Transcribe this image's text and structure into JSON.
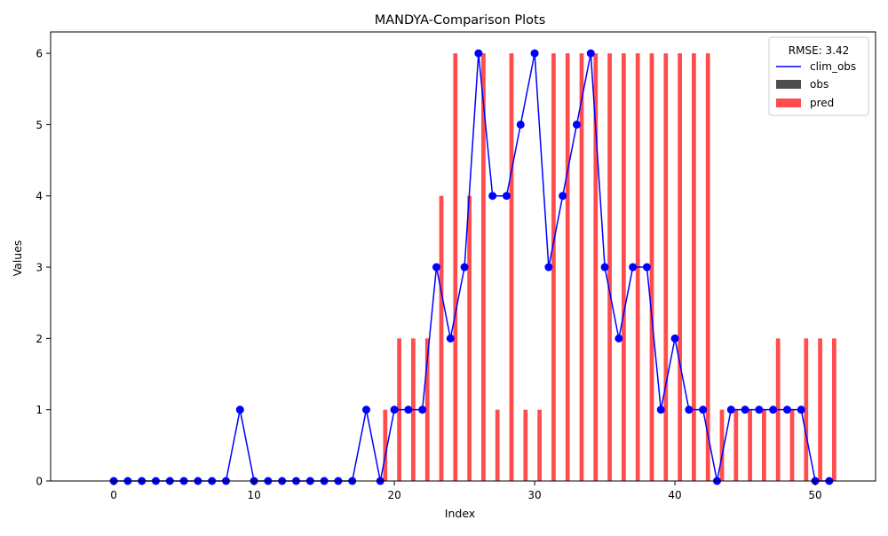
{
  "chart_data": {
    "type": "bar+line",
    "title": "MANDYA-Comparison Plots",
    "xlabel": "Index",
    "ylabel": "Values",
    "xlim": [
      -4.5,
      54.3
    ],
    "ylim": [
      0,
      6.3
    ],
    "xticks": [
      0,
      10,
      20,
      30,
      40,
      50
    ],
    "yticks": [
      0,
      1,
      2,
      3,
      4,
      5,
      6
    ],
    "legend": {
      "title": "RMSE: 3.42",
      "position": "top-right",
      "entries": [
        {
          "label": "clim_obs",
          "kind": "line",
          "color": "#0000ff"
        },
        {
          "label": "obs",
          "kind": "patch",
          "color": "#4d4d4d"
        },
        {
          "label": "pred",
          "kind": "patch",
          "color": "#ff4d4d"
        }
      ]
    },
    "series": [
      {
        "name": "clim_obs",
        "kind": "line",
        "color": "#0000ff",
        "x": [
          0,
          1,
          2,
          3,
          4,
          5,
          6,
          7,
          8,
          9,
          10,
          11,
          12,
          13,
          14,
          15,
          16,
          17,
          18,
          19,
          20,
          21,
          22,
          23,
          24,
          25,
          26,
          27,
          28,
          29,
          30,
          31,
          32,
          33,
          34,
          35,
          36,
          37,
          38,
          39,
          40,
          41,
          42,
          43,
          44,
          45,
          46,
          47,
          48,
          49,
          50,
          51
        ],
        "values": [
          0,
          0,
          0,
          0,
          0,
          0,
          0,
          0,
          0,
          1,
          0,
          0,
          0,
          0,
          0,
          0,
          0,
          0,
          1,
          0,
          1,
          1,
          1,
          3,
          2,
          3,
          6,
          4,
          4,
          5,
          6,
          3,
          4,
          5,
          6,
          3,
          2,
          3,
          3,
          1,
          2,
          1,
          1,
          0,
          1,
          1,
          1,
          1,
          1,
          1,
          0,
          0
        ]
      },
      {
        "name": "obs",
        "kind": "bar",
        "color": "#4d4d4d",
        "x": [],
        "values": []
      },
      {
        "name": "pred",
        "kind": "bar",
        "color": "#ff4d4d",
        "x": [
          19,
          20,
          21,
          22,
          23,
          24,
          25,
          26,
          27,
          28,
          29,
          30,
          31,
          32,
          33,
          34,
          35,
          36,
          37,
          38,
          39,
          40,
          41,
          42,
          43,
          44,
          45,
          46,
          47,
          48,
          49,
          50,
          51
        ],
        "values": [
          1,
          2,
          2,
          2,
          4,
          6,
          4,
          6,
          1,
          6,
          1,
          1,
          6,
          6,
          6,
          6,
          6,
          6,
          6,
          6,
          6,
          6,
          6,
          6,
          1,
          1,
          1,
          1,
          2,
          1,
          2,
          2,
          2
        ]
      }
    ]
  }
}
